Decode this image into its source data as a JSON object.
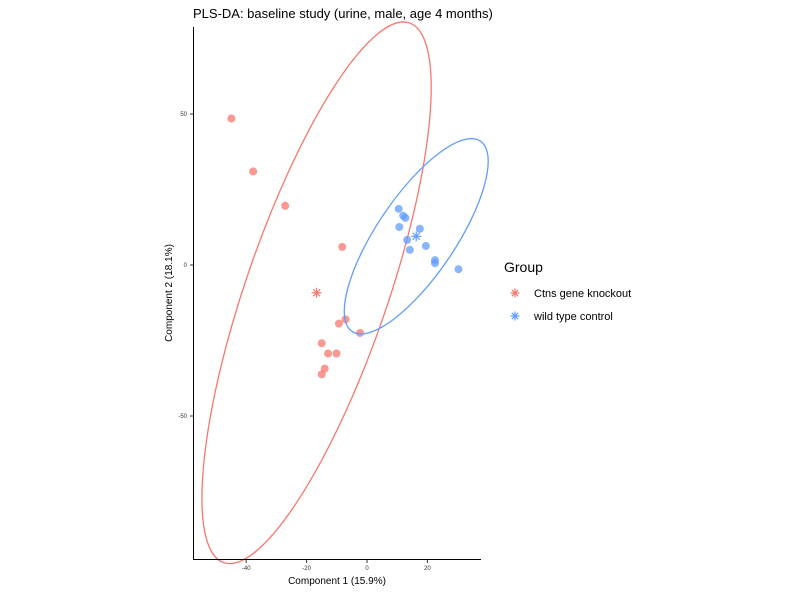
{
  "chart_data": {
    "type": "scatter",
    "title": "PLS-DA: baseline study (urine, male, age 4 months)",
    "xlabel": "Component 1 (15.9%)",
    "ylabel": "Component 2 (18.1%)",
    "xlim": [
      -57,
      38
    ],
    "ylim": [
      -98,
      78
    ],
    "xticks": [
      "-40",
      "-20",
      "0",
      "20"
    ],
    "yticks": [
      "50",
      "0",
      "-50"
    ],
    "grid": false,
    "legend": {
      "title": "Group",
      "placement": "right"
    },
    "series": [
      {
        "name": "Ctns gene knockout",
        "color": "#F8766D",
        "points": [
          {
            "x": -44.9,
            "y": 48.5
          },
          {
            "x": -37.7,
            "y": 31.0
          },
          {
            "x": -27.1,
            "y": 19.6
          },
          {
            "x": -8.2,
            "y": 6.0
          },
          {
            "x": -7.1,
            "y": -18.0
          },
          {
            "x": -9.3,
            "y": -19.4
          },
          {
            "x": -2.3,
            "y": -22.5
          },
          {
            "x": -15.0,
            "y": -25.9
          },
          {
            "x": -12.9,
            "y": -29.3
          },
          {
            "x": -10.1,
            "y": -29.3
          },
          {
            "x": -14.0,
            "y": -34.3
          },
          {
            "x": -15.0,
            "y": -36.2
          }
        ],
        "centroid": {
          "x": -16.7,
          "y": -9.2
        },
        "ellipse": {
          "center": {
            "x": -16.7,
            "y": -9.2
          },
          "semi_major": 94.5,
          "semi_minor": 23.5,
          "angle_deg": 71
        }
      },
      {
        "name": "wild type control",
        "color": "#619CFF",
        "points": [
          {
            "x": 10.5,
            "y": 18.6
          },
          {
            "x": 12.0,
            "y": 16.3
          },
          {
            "x": 12.7,
            "y": 15.6
          },
          {
            "x": 10.7,
            "y": 12.6
          },
          {
            "x": 17.5,
            "y": 12.0
          },
          {
            "x": 13.3,
            "y": 8.3
          },
          {
            "x": 19.5,
            "y": 6.3
          },
          {
            "x": 14.2,
            "y": 5.0
          },
          {
            "x": 22.5,
            "y": 1.6
          },
          {
            "x": 22.5,
            "y": 0.6
          },
          {
            "x": 30.3,
            "y": -1.4
          }
        ],
        "centroid": {
          "x": 16.3,
          "y": 9.5
        },
        "ellipse": {
          "center": {
            "x": 16.3,
            "y": 9.5
          },
          "semi_major": 38.0,
          "semi_minor": 13.0,
          "angle_deg": 56
        }
      }
    ]
  }
}
